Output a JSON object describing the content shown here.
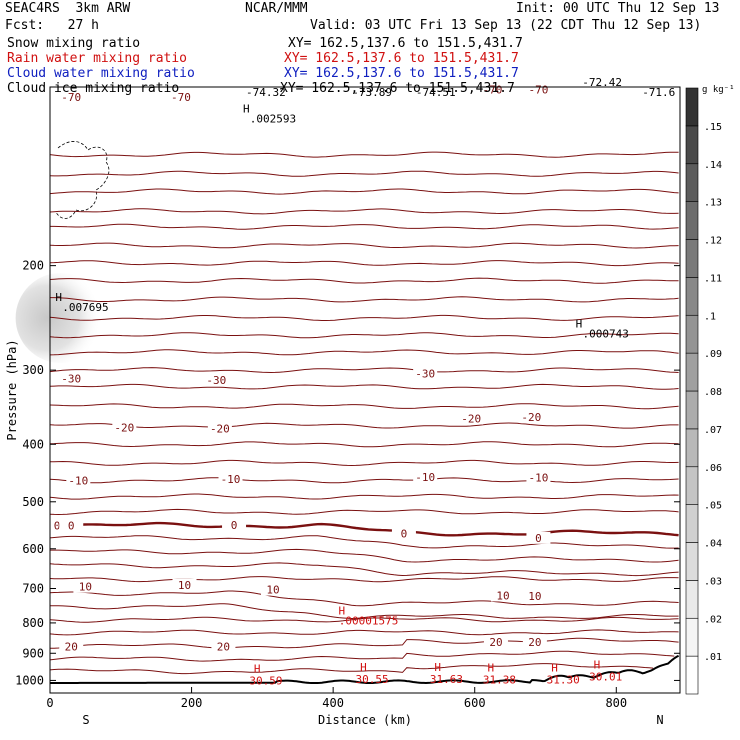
{
  "header": {
    "run": "SEAC4RS  3km ARW",
    "org": "NCAR/MMM",
    "init": "Init: 00 UTC Thu 12 Sep 13",
    "fcst": "Fcst:   27 h",
    "valid": "Valid: 03 UTC Fri 13 Sep 13 (22 CDT Thu 12 Sep 13)"
  },
  "fields": [
    {
      "label": "Snow mixing ratio",
      "xy": "XY= 162.5,137.6 to 151.5,431.7",
      "color": "#000000"
    },
    {
      "label": "Rain water mixing ratio",
      "xy": "XY= 162.5,137.6 to 151.5,431.7",
      "color": "#d01010"
    },
    {
      "label": "Cloud water mixing ratio",
      "xy": "XY= 162.5,137.6 to 151.5,431.7",
      "color": "#1020c0"
    },
    {
      "label": "Cloud ice mixing ratio",
      "xy": "XY= 162.5,137.6 to 151.5,431.7",
      "color": "#000000"
    }
  ],
  "chart_data": {
    "type": "contour",
    "xlabel": "Distance (km)",
    "ylabel": "Pressure (hPa)",
    "xlim": [
      0,
      890
    ],
    "ylim": [
      1050,
      100
    ],
    "y_scale": "log",
    "xticks": [
      "0",
      "200",
      "400",
      "600",
      "800"
    ],
    "yticks": [
      "200",
      "300",
      "400",
      "500",
      "600",
      "700",
      "800",
      "900",
      "1000"
    ],
    "x_ends": {
      "left": "S",
      "right": "N"
    },
    "colorbar": {
      "unit": "g kg⁻¹",
      "levels": [
        ".01",
        ".02",
        ".03",
        ".04",
        ".05",
        ".06",
        ".07",
        ".08",
        ".09",
        ".1",
        ".11",
        ".12",
        ".13",
        ".14",
        ".15"
      ],
      "colors": [
        "#ffffff",
        "#f5f5f5",
        "#eaeaea",
        "#dcdcdc",
        "#d0d0d0",
        "#c4c4c4",
        "#b8b8b8",
        "#acacac",
        "#a0a0a0",
        "#949494",
        "#888888",
        "#7a7a7a",
        "#6c6c6c",
        "#5c5c5c",
        "#4a4a4a",
        "#333333"
      ]
    },
    "contour_color": "#7a1010",
    "temperature_labels": [
      {
        "text": "-70",
        "x": 30,
        "p": 104
      },
      {
        "text": "-70",
        "x": 185,
        "p": 104
      },
      {
        "text": "-70",
        "x": 625,
        "p": 101
      },
      {
        "text": "-70",
        "x": 690,
        "p": 101
      },
      {
        "text": "-30",
        "x": 30,
        "p": 310
      },
      {
        "text": "-30",
        "x": 235,
        "p": 312
      },
      {
        "text": "-30",
        "x": 530,
        "p": 304
      },
      {
        "text": "-20",
        "x": 105,
        "p": 375
      },
      {
        "text": "-20",
        "x": 240,
        "p": 376
      },
      {
        "text": "-20",
        "x": 595,
        "p": 362
      },
      {
        "text": "-20",
        "x": 680,
        "p": 360
      },
      {
        "text": "-10",
        "x": 40,
        "p": 460
      },
      {
        "text": "-10",
        "x": 255,
        "p": 458
      },
      {
        "text": "-10",
        "x": 530,
        "p": 454
      },
      {
        "text": "-10",
        "x": 690,
        "p": 455
      },
      {
        "text": "0",
        "x": 10,
        "p": 548
      },
      {
        "text": "0",
        "x": 30,
        "p": 548
      },
      {
        "text": "0",
        "x": 260,
        "p": 547
      },
      {
        "text": "0",
        "x": 500,
        "p": 565
      },
      {
        "text": "0",
        "x": 690,
        "p": 575
      },
      {
        "text": "10",
        "x": 50,
        "p": 695
      },
      {
        "text": "10",
        "x": 190,
        "p": 690
      },
      {
        "text": "10",
        "x": 315,
        "p": 703
      },
      {
        "text": "10",
        "x": 640,
        "p": 719
      },
      {
        "text": "10",
        "x": 685,
        "p": 720
      },
      {
        "text": "20",
        "x": 30,
        "p": 876
      },
      {
        "text": "20",
        "x": 245,
        "p": 876
      },
      {
        "text": "20",
        "x": 630,
        "p": 861
      },
      {
        "text": "20",
        "x": 685,
        "p": 861
      }
    ],
    "top_values": [
      {
        "text": "-74.32",
        "x": 305,
        "p": 102
      },
      {
        "text": "-73.89",
        "x": 455,
        "p": 102
      },
      {
        "text": "-74.51",
        "x": 545,
        "p": 102
      },
      {
        "text": "-72.42",
        "x": 780,
        "p": 98
      },
      {
        "text": "-71.6",
        "x": 860,
        "p": 102
      }
    ],
    "highs": [
      {
        "text": ".002593",
        "x": 315,
        "p": 113,
        "color": "#000000"
      },
      {
        "text": ".007695",
        "x": 50,
        "p": 235,
        "color": "#000000"
      },
      {
        "text": ".000743",
        "x": 785,
        "p": 260,
        "color": "#000000"
      },
      {
        "text": ".00001575",
        "x": 450,
        "p": 792,
        "color": "#d01010"
      }
    ],
    "surface_values": [
      {
        "text": "30.59",
        "x": 305,
        "p": 1000
      },
      {
        "text": "30.55",
        "x": 455,
        "p": 994
      },
      {
        "text": "31.63",
        "x": 560,
        "p": 995
      },
      {
        "text": "31.38",
        "x": 635,
        "p": 996
      },
      {
        "text": "31.30",
        "x": 725,
        "p": 996
      },
      {
        "text": "30.01",
        "x": 785,
        "p": 985
      }
    ],
    "isotherm_levels": [
      130,
      140,
      150,
      162,
      172,
      185,
      198,
      212,
      228,
      245,
      262,
      280,
      300,
      320,
      345,
      372,
      400,
      430,
      460,
      490,
      520,
      548,
      575,
      607,
      640,
      675,
      712,
      750,
      790,
      830,
      875,
      920,
      965
    ]
  }
}
